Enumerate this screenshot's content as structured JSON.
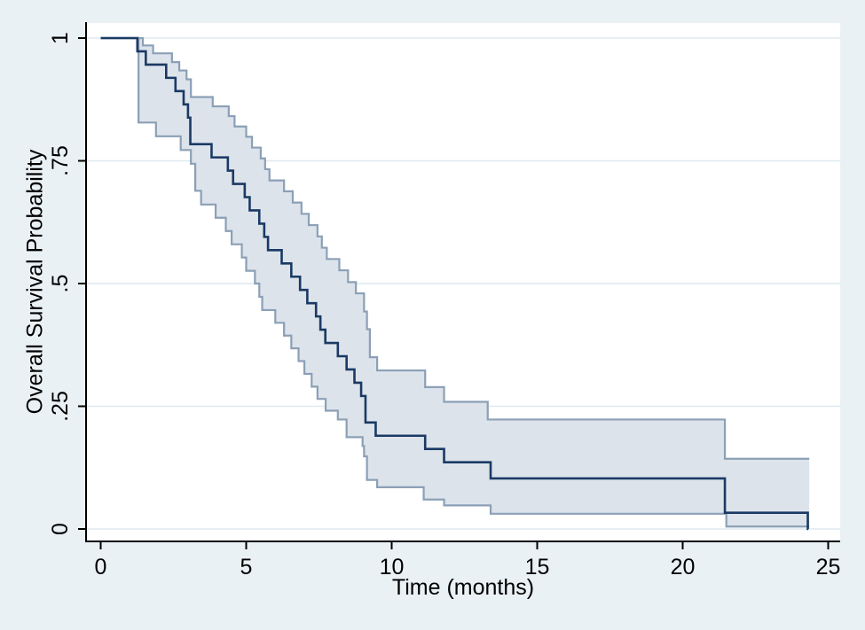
{
  "figure": {
    "background": "#eaf1f4",
    "plot_background": "#ffffff"
  },
  "chart_data": {
    "type": "line",
    "subtype": "kaplan-meier-step-with-confidence-band",
    "title": "",
    "xlabel": "Time (months)",
    "ylabel": "Overall Survival Probability",
    "xlim": [
      0,
      25.4
    ],
    "ylim": [
      0,
      1
    ],
    "x_end": 24.35,
    "grid": "horizontal",
    "legend": "none",
    "xticks": {
      "values": [
        0,
        5,
        10,
        15,
        20,
        25
      ],
      "labels": [
        "0",
        "5",
        "10",
        "15",
        "20",
        "25"
      ]
    },
    "yticks": {
      "values": [
        0,
        0.25,
        0.5,
        0.75,
        1
      ],
      "labels": [
        "0",
        ".25",
        ".5",
        ".75",
        "1"
      ]
    },
    "colors": {
      "survival_line": "#1a3a64",
      "ci_line": "#8ba0b6",
      "ci_fill": "#dde3eb",
      "gridline": "#dfe9f1",
      "axis": "#000000",
      "text": "#000000"
    },
    "series": [
      {
        "name": "survival",
        "role": "main",
        "points": [
          [
            0,
            1.0
          ],
          [
            1.26,
            0.973
          ],
          [
            1.55,
            0.946
          ],
          [
            2.25,
            0.919
          ],
          [
            2.57,
            0.892
          ],
          [
            2.85,
            0.865
          ],
          [
            3.0,
            0.838
          ],
          [
            3.08,
            0.784
          ],
          [
            3.81,
            0.757
          ],
          [
            4.37,
            0.73
          ],
          [
            4.55,
            0.703
          ],
          [
            4.95,
            0.676
          ],
          [
            5.12,
            0.649
          ],
          [
            5.45,
            0.622
          ],
          [
            5.62,
            0.595
          ],
          [
            5.75,
            0.568
          ],
          [
            6.22,
            0.541
          ],
          [
            6.55,
            0.514
          ],
          [
            6.85,
            0.487
          ],
          [
            7.1,
            0.46
          ],
          [
            7.4,
            0.433
          ],
          [
            7.55,
            0.406
          ],
          [
            7.72,
            0.379
          ],
          [
            8.15,
            0.352
          ],
          [
            8.45,
            0.325
          ],
          [
            8.72,
            0.298
          ],
          [
            8.95,
            0.271
          ],
          [
            9.1,
            0.217
          ],
          [
            9.45,
            0.19
          ],
          [
            11.15,
            0.163
          ],
          [
            11.8,
            0.136
          ],
          [
            13.4,
            0.103
          ],
          [
            21.45,
            0.033
          ],
          [
            24.3,
            0.0
          ]
        ]
      },
      {
        "name": "ci_upper",
        "role": "ci-upper",
        "points": [
          [
            0,
            1.0
          ],
          [
            1.45,
            0.985
          ],
          [
            1.8,
            0.969
          ],
          [
            2.45,
            0.951
          ],
          [
            2.7,
            0.934
          ],
          [
            2.95,
            0.916
          ],
          [
            3.1,
            0.88
          ],
          [
            3.85,
            0.861
          ],
          [
            4.4,
            0.841
          ],
          [
            4.6,
            0.82
          ],
          [
            5.0,
            0.799
          ],
          [
            5.2,
            0.777
          ],
          [
            5.5,
            0.755
          ],
          [
            5.65,
            0.733
          ],
          [
            5.8,
            0.71
          ],
          [
            6.3,
            0.688
          ],
          [
            6.6,
            0.665
          ],
          [
            6.9,
            0.642
          ],
          [
            7.15,
            0.619
          ],
          [
            7.45,
            0.596
          ],
          [
            7.6,
            0.573
          ],
          [
            7.77,
            0.55
          ],
          [
            8.2,
            0.527
          ],
          [
            8.5,
            0.503
          ],
          [
            8.77,
            0.48
          ],
          [
            9.05,
            0.443
          ],
          [
            9.15,
            0.407
          ],
          [
            9.25,
            0.35
          ],
          [
            9.5,
            0.323
          ],
          [
            11.15,
            0.289
          ],
          [
            11.8,
            0.259
          ],
          [
            13.3,
            0.223
          ],
          [
            21.45,
            0.143
          ]
        ]
      },
      {
        "name": "ci_lower",
        "role": "ci-lower",
        "points": [
          [
            0,
            1.0
          ],
          [
            1.3,
            0.828
          ],
          [
            1.9,
            0.8
          ],
          [
            2.75,
            0.772
          ],
          [
            3.1,
            0.744
          ],
          [
            3.25,
            0.689
          ],
          [
            3.45,
            0.661
          ],
          [
            3.95,
            0.634
          ],
          [
            4.3,
            0.607
          ],
          [
            4.5,
            0.58
          ],
          [
            4.85,
            0.553
          ],
          [
            5.0,
            0.526
          ],
          [
            5.3,
            0.5
          ],
          [
            5.45,
            0.473
          ],
          [
            5.55,
            0.446
          ],
          [
            6.0,
            0.42
          ],
          [
            6.3,
            0.394
          ],
          [
            6.55,
            0.368
          ],
          [
            6.8,
            0.342
          ],
          [
            7.0,
            0.316
          ],
          [
            7.25,
            0.29
          ],
          [
            7.45,
            0.265
          ],
          [
            7.73,
            0.241
          ],
          [
            8.15,
            0.223
          ],
          [
            8.45,
            0.187
          ],
          [
            9.0,
            0.169
          ],
          [
            9.05,
            0.148
          ],
          [
            9.15,
            0.1
          ],
          [
            9.5,
            0.085
          ],
          [
            11.1,
            0.06
          ],
          [
            11.8,
            0.048
          ],
          [
            13.4,
            0.031
          ],
          [
            21.5,
            0.005
          ]
        ]
      }
    ],
    "band": {
      "between": [
        "ci_upper",
        "ci_lower"
      ],
      "fill": "#dde3eb"
    }
  }
}
